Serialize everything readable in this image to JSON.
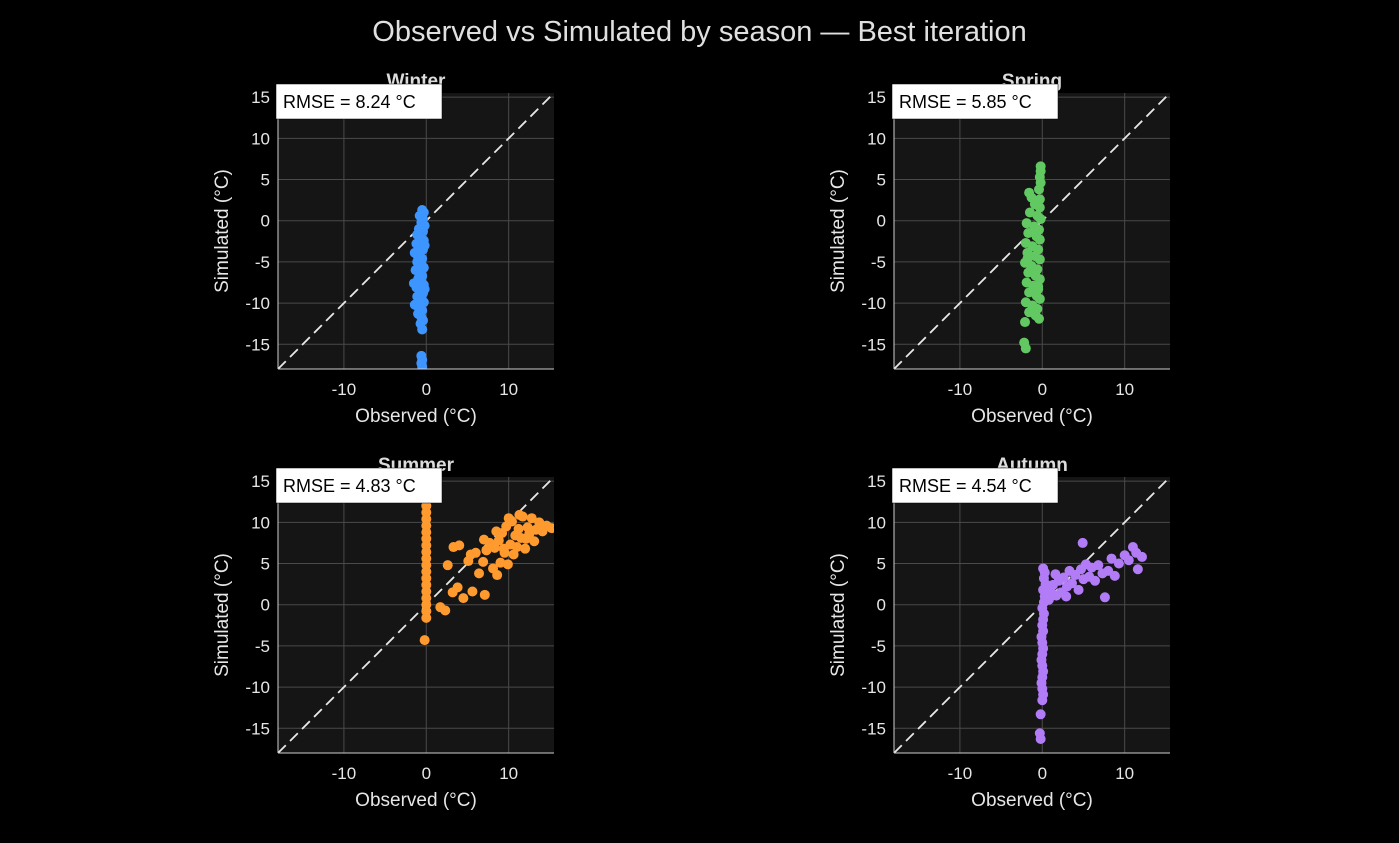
{
  "figure": {
    "title": "Observed vs Simulated by season — Best iteration",
    "background": "#000000",
    "axes_background": "#151515",
    "grid_color": "#4a4a4a",
    "text_color": "#e6e6e6"
  },
  "chart_data": [
    {
      "type": "scatter",
      "title": "Winter",
      "xlabel": "Observed (°C)",
      "ylabel": "Simulated (°C)",
      "xlim": [
        -18,
        15.5
      ],
      "ylim": [
        -18,
        15.5
      ],
      "xticks": [
        -10,
        0,
        10
      ],
      "yticks": [
        -15,
        -10,
        -5,
        0,
        5,
        10,
        15
      ],
      "grid": true,
      "reference_line": "1:1 dashed",
      "annotation": "RMSE = 8.24 °C",
      "color": "#3d95ff",
      "points": [
        [
          -0.5,
          1.3
        ],
        [
          -0.3,
          1.0
        ],
        [
          -0.8,
          0.6
        ],
        [
          -0.4,
          0.2
        ],
        [
          -0.6,
          -0.2
        ],
        [
          -0.2,
          -0.6
        ],
        [
          -0.9,
          -1.0
        ],
        [
          -0.4,
          -1.3
        ],
        [
          -1.1,
          -1.7
        ],
        [
          -0.6,
          -2.1
        ],
        [
          -0.3,
          -2.4
        ],
        [
          -1.2,
          -2.8
        ],
        [
          -0.7,
          -3.2
        ],
        [
          -0.4,
          -3.5
        ],
        [
          -1.4,
          -3.9
        ],
        [
          -0.8,
          -4.2
        ],
        [
          -0.5,
          -4.6
        ],
        [
          -1.1,
          -5.0
        ],
        [
          -0.6,
          -5.3
        ],
        [
          -0.3,
          -5.7
        ],
        [
          -1.3,
          -6.0
        ],
        [
          -0.7,
          -6.4
        ],
        [
          -0.5,
          -6.7
        ],
        [
          -1.0,
          -7.1
        ],
        [
          -0.6,
          -7.4
        ],
        [
          -0.3,
          -7.8
        ],
        [
          -1.2,
          -8.1
        ],
        [
          -0.8,
          -8.5
        ],
        [
          -0.4,
          -8.8
        ],
        [
          -1.1,
          -9.2
        ],
        [
          -0.6,
          -9.5
        ],
        [
          -0.3,
          -9.9
        ],
        [
          -1.4,
          -10.2
        ],
        [
          -0.9,
          -10.6
        ],
        [
          -0.5,
          -10.9
        ],
        [
          -1.0,
          -11.3
        ],
        [
          -0.6,
          -11.7
        ],
        [
          -0.4,
          -12.1
        ],
        [
          -0.7,
          -12.5
        ],
        [
          -0.5,
          -13.2
        ],
        [
          -0.6,
          -16.4
        ],
        [
          -0.5,
          -16.9
        ],
        [
          -0.6,
          -17.3
        ],
        [
          -0.5,
          -17.7
        ],
        [
          -1.0,
          -4.4
        ],
        [
          -0.9,
          -6.9
        ],
        [
          -0.8,
          -9.8
        ],
        [
          -0.2,
          -3.0
        ],
        [
          -0.2,
          -8.3
        ],
        [
          -1.5,
          -7.6
        ]
      ]
    },
    {
      "type": "scatter",
      "title": "Spring",
      "xlabel": "Observed (°C)",
      "ylabel": "Simulated (°C)",
      "xlim": [
        -18,
        15.5
      ],
      "ylim": [
        -18,
        15.5
      ],
      "xticks": [
        -10,
        0,
        10
      ],
      "yticks": [
        -15,
        -10,
        -5,
        0,
        5,
        10,
        15
      ],
      "grid": true,
      "reference_line": "1:1 dashed",
      "annotation": "RMSE = 5.85 °C",
      "color": "#62c862",
      "points": [
        [
          -0.2,
          6.6
        ],
        [
          -0.2,
          6.0
        ],
        [
          -0.3,
          5.3
        ],
        [
          -0.2,
          4.6
        ],
        [
          -0.4,
          3.8
        ],
        [
          -1.6,
          3.4
        ],
        [
          -1.3,
          2.8
        ],
        [
          -0.3,
          2.6
        ],
        [
          -0.9,
          2.0
        ],
        [
          -0.3,
          1.6
        ],
        [
          -1.5,
          1.0
        ],
        [
          -0.6,
          0.6
        ],
        [
          -0.2,
          0.2
        ],
        [
          -1.9,
          -0.3
        ],
        [
          -1.0,
          -0.7
        ],
        [
          -0.4,
          -1.1
        ],
        [
          -1.7,
          -1.5
        ],
        [
          -0.7,
          -1.9
        ],
        [
          -0.3,
          -2.3
        ],
        [
          -2.0,
          -2.7
        ],
        [
          -1.2,
          -3.1
        ],
        [
          -0.5,
          -3.5
        ],
        [
          -1.8,
          -3.9
        ],
        [
          -0.9,
          -4.3
        ],
        [
          -0.3,
          -4.7
        ],
        [
          -2.1,
          -5.1
        ],
        [
          -1.3,
          -5.5
        ],
        [
          -0.6,
          -5.9
        ],
        [
          -1.7,
          -6.3
        ],
        [
          -0.8,
          -6.7
        ],
        [
          -0.3,
          -7.1
        ],
        [
          -1.9,
          -7.5
        ],
        [
          -1.1,
          -7.9
        ],
        [
          -0.5,
          -8.3
        ],
        [
          -1.6,
          -8.7
        ],
        [
          -0.7,
          -9.1
        ],
        [
          -0.3,
          -9.5
        ],
        [
          -2.0,
          -9.9
        ],
        [
          -1.2,
          -10.3
        ],
        [
          -0.6,
          -10.7
        ],
        [
          -1.6,
          -11.1
        ],
        [
          -0.8,
          -11.5
        ],
        [
          -0.4,
          -11.9
        ],
        [
          -2.1,
          -12.3
        ],
        [
          -2.2,
          -14.8
        ],
        [
          -2.0,
          -15.5
        ],
        [
          -1.4,
          -6.0
        ],
        [
          -1.0,
          -1.3
        ],
        [
          -0.5,
          -8.0
        ],
        [
          -1.8,
          -4.6
        ]
      ]
    },
    {
      "type": "scatter",
      "title": "Summer",
      "xlabel": "Observed (°C)",
      "ylabel": "Simulated (°C)",
      "xlim": [
        -18,
        15.5
      ],
      "ylim": [
        -18,
        15.5
      ],
      "xticks": [
        -10,
        0,
        10
      ],
      "yticks": [
        -15,
        -10,
        -5,
        0,
        5,
        10,
        15
      ],
      "grid": true,
      "reference_line": "1:1 dashed",
      "annotation": "RMSE = 4.83 °C",
      "color": "#ff9a2e",
      "points": [
        [
          0,
          12.0
        ],
        [
          0,
          11.2
        ],
        [
          0,
          10.4
        ],
        [
          0,
          9.6
        ],
        [
          0,
          8.8
        ],
        [
          0,
          8.0
        ],
        [
          0,
          7.2
        ],
        [
          0,
          6.4
        ],
        [
          0,
          5.6
        ],
        [
          0,
          4.8
        ],
        [
          0,
          4.0
        ],
        [
          0,
          3.2
        ],
        [
          0,
          2.4
        ],
        [
          0,
          1.6
        ],
        [
          0,
          0.8
        ],
        [
          0,
          0.0
        ],
        [
          0,
          -0.8
        ],
        [
          0,
          -1.6
        ],
        [
          -0.2,
          -4.3
        ],
        [
          1.7,
          -0.3
        ],
        [
          2.3,
          -0.7
        ],
        [
          2.6,
          4.8
        ],
        [
          3.2,
          1.5
        ],
        [
          3.3,
          7.0
        ],
        [
          3.8,
          2.1
        ],
        [
          4.0,
          7.2
        ],
        [
          4.5,
          0.8
        ],
        [
          5.1,
          5.3
        ],
        [
          5.6,
          1.6
        ],
        [
          5.4,
          6.1
        ],
        [
          6.0,
          6.3
        ],
        [
          6.4,
          3.8
        ],
        [
          6.9,
          5.2
        ],
        [
          7.1,
          1.2
        ],
        [
          7.3,
          6.6
        ],
        [
          7.7,
          7.5
        ],
        [
          8.1,
          4.4
        ],
        [
          8.3,
          6.9
        ],
        [
          8.6,
          3.6
        ],
        [
          8.8,
          7.8
        ],
        [
          9.0,
          5.1
        ],
        [
          9.2,
          8.7
        ],
        [
          9.5,
          6.3
        ],
        [
          9.7,
          9.5
        ],
        [
          9.9,
          4.9
        ],
        [
          10.2,
          7.3
        ],
        [
          10.4,
          10.1
        ],
        [
          10.6,
          6.1
        ],
        [
          10.8,
          8.4
        ],
        [
          11.0,
          7.0
        ],
        [
          11.2,
          9.2
        ],
        [
          11.5,
          8.1
        ],
        [
          11.7,
          10.7
        ],
        [
          12.0,
          6.8
        ],
        [
          12.3,
          9.4
        ],
        [
          12.5,
          8.6
        ],
        [
          12.8,
          10.5
        ],
        [
          13.1,
          7.7
        ],
        [
          13.3,
          9.1
        ],
        [
          13.7,
          10.0
        ],
        [
          14.1,
          8.9
        ],
        [
          14.6,
          9.6
        ],
        [
          15.2,
          9.3
        ],
        [
          10.0,
          10.5
        ],
        [
          11.3,
          10.9
        ],
        [
          9.4,
          6.8
        ],
        [
          8.5,
          8.9
        ],
        [
          12.1,
          8.0
        ],
        [
          7.0,
          7.9
        ]
      ]
    },
    {
      "type": "scatter",
      "title": "Autumn",
      "xlabel": "Observed (°C)",
      "ylabel": "Simulated (°C)",
      "xlim": [
        -18,
        15.5
      ],
      "ylim": [
        -18,
        15.5
      ],
      "xticks": [
        -10,
        0,
        10
      ],
      "yticks": [
        -15,
        -10,
        -5,
        0,
        5,
        10,
        15
      ],
      "grid": true,
      "reference_line": "1:1 dashed",
      "annotation": "RMSE = 4.54 °C",
      "color": "#b27cf7",
      "points": [
        [
          0.1,
          4.4
        ],
        [
          0.3,
          3.9
        ],
        [
          0.2,
          3.2
        ],
        [
          0.4,
          2.5
        ],
        [
          0.1,
          1.8
        ],
        [
          0.3,
          1.0
        ],
        [
          0.2,
          0.3
        ],
        [
          0.0,
          -0.4
        ],
        [
          0.2,
          -1.1
        ],
        [
          0.1,
          -1.8
        ],
        [
          0.0,
          -2.5
        ],
        [
          0.1,
          -3.2
        ],
        [
          -0.1,
          -3.9
        ],
        [
          0.0,
          -4.6
        ],
        [
          0.1,
          -5.3
        ],
        [
          0.0,
          -6.0
        ],
        [
          -0.1,
          -6.7
        ],
        [
          0.0,
          -7.4
        ],
        [
          0.1,
          -8.1
        ],
        [
          0.0,
          -8.8
        ],
        [
          -0.1,
          -9.5
        ],
        [
          0.0,
          -10.2
        ],
        [
          0.1,
          -10.9
        ],
        [
          0.0,
          -11.6
        ],
        [
          -0.2,
          -13.3
        ],
        [
          -0.3,
          -15.6
        ],
        [
          -0.2,
          -16.3
        ],
        [
          1.0,
          1.7
        ],
        [
          1.3,
          2.4
        ],
        [
          1.7,
          1.1
        ],
        [
          2.0,
          2.9
        ],
        [
          2.3,
          1.5
        ],
        [
          2.6,
          3.3
        ],
        [
          3.0,
          2.2
        ],
        [
          3.3,
          4.1
        ],
        [
          3.6,
          2.6
        ],
        [
          4.0,
          3.6
        ],
        [
          4.4,
          1.8
        ],
        [
          4.7,
          4.3
        ],
        [
          5.0,
          3.1
        ],
        [
          5.3,
          4.9
        ],
        [
          5.7,
          3.4
        ],
        [
          6.0,
          4.5
        ],
        [
          6.4,
          2.9
        ],
        [
          6.8,
          4.8
        ],
        [
          7.3,
          3.8
        ],
        [
          7.6,
          0.9
        ],
        [
          8.0,
          4.1
        ],
        [
          8.4,
          5.6
        ],
        [
          8.8,
          3.5
        ],
        [
          9.3,
          5.0
        ],
        [
          10.0,
          6.0
        ],
        [
          10.5,
          5.4
        ],
        [
          11.0,
          7.0
        ],
        [
          11.4,
          6.3
        ],
        [
          11.6,
          4.3
        ],
        [
          12.1,
          5.8
        ],
        [
          4.9,
          7.5
        ],
        [
          1.6,
          3.7
        ],
        [
          0.8,
          0.6
        ],
        [
          2.9,
          1.0
        ]
      ]
    }
  ]
}
